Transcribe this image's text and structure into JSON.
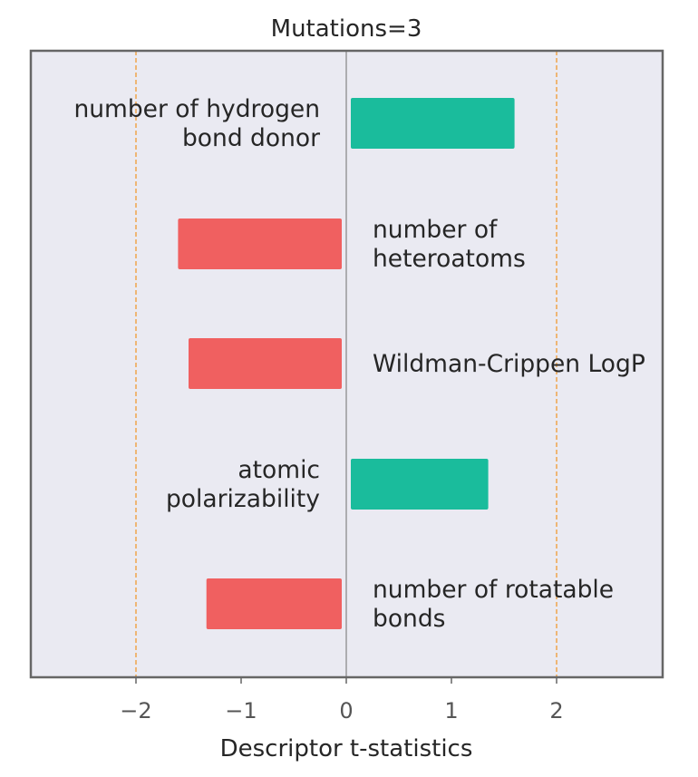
{
  "chart_data": {
    "type": "bar",
    "orientation": "horizontal",
    "title": "Mutations=3",
    "xlabel": "Descriptor t-statistics",
    "ylabel": "",
    "xlim": [
      -3,
      3
    ],
    "xticks": [
      -2,
      -1,
      0,
      1,
      2
    ],
    "xtick_labels": [
      "−2",
      "−1",
      "0",
      "1",
      "2"
    ],
    "reference_lines": [
      -2,
      0,
      2
    ],
    "grid": false,
    "categories": [
      "number of hydrogen bond donor",
      "number of heteroatoms",
      "Wildman-Crippen LogP",
      "atomic polarizability",
      "number of rotatable bonds"
    ],
    "label_lines": [
      [
        "number of hydrogen",
        "bond donor"
      ],
      [
        "number of",
        "heteroatoms"
      ],
      [
        "Wildman-Crippen LogP"
      ],
      [
        "atomic",
        "polarizability"
      ],
      [
        "number of rotatable",
        "bonds"
      ]
    ],
    "values": [
      1.6,
      -1.6,
      -1.5,
      1.35,
      -1.33
    ],
    "colors": {
      "positive": "#1abc9c",
      "negative": "#f06060",
      "reference_line": "#f0a040",
      "zero_line": "#8c8c8c",
      "plot_background": "#eaeaf2",
      "frame": "#666666"
    }
  }
}
